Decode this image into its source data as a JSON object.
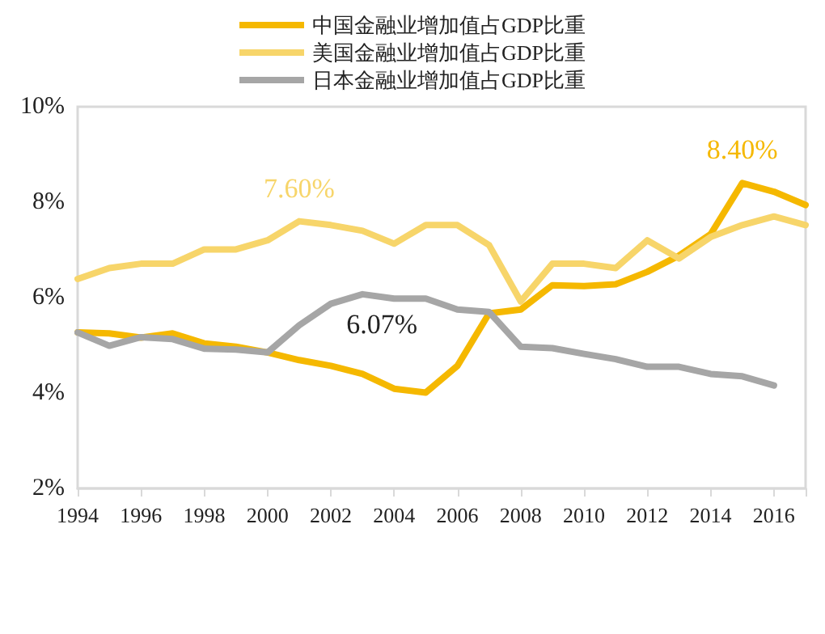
{
  "chart_data": {
    "type": "line",
    "categories": [
      "1994",
      null,
      "1996",
      null,
      "1998",
      null,
      "2000",
      null,
      "2002",
      null,
      "2004",
      null,
      "2006",
      null,
      "2008",
      null,
      "2010",
      null,
      "2012",
      null,
      "2014",
      null,
      "2016",
      null
    ],
    "series": [
      {
        "name": "中国金融业增加值占GDP比重",
        "color": "#f5b800",
        "values": [
          5.27,
          5.25,
          5.16,
          5.25,
          5.04,
          4.97,
          4.85,
          4.69,
          4.57,
          4.4,
          4.09,
          4.01,
          4.57,
          5.67,
          5.75,
          6.26,
          6.24,
          6.28,
          6.54,
          6.88,
          7.33,
          8.4,
          8.22,
          7.94
        ],
        "value_labels": [
          null,
          null,
          null,
          null,
          null,
          null,
          null,
          null,
          null,
          null,
          null,
          null,
          null,
          null,
          null,
          null,
          null,
          null,
          null,
          null,
          null,
          "8.40%",
          null,
          null
        ]
      },
      {
        "name": "美国金融业增加值占GDP比重",
        "color": "#f7d56a",
        "values": [
          6.39,
          6.62,
          6.71,
          6.71,
          7.01,
          7.01,
          7.2,
          7.6,
          7.52,
          7.4,
          7.13,
          7.52,
          7.52,
          7.1,
          5.92,
          6.71,
          6.71,
          6.62,
          7.2,
          6.82,
          7.27,
          7.52,
          7.7,
          7.52
        ],
        "value_labels": [
          null,
          null,
          null,
          null,
          null,
          null,
          null,
          "7.60%",
          null,
          null,
          null,
          null,
          null,
          null,
          null,
          null,
          null,
          null,
          null,
          null,
          null,
          null,
          null,
          null
        ]
      },
      {
        "name": "日本金融业增加值占GDP比重",
        "color": "#a6a6a6",
        "values": [
          5.27,
          4.99,
          5.17,
          5.13,
          4.93,
          4.91,
          4.85,
          5.42,
          5.87,
          6.07,
          5.98,
          5.98,
          5.75,
          5.7,
          4.97,
          4.94,
          4.82,
          4.71,
          4.55,
          4.55,
          4.4,
          4.35,
          4.16,
          null
        ],
        "value_labels": [
          null,
          null,
          null,
          null,
          null,
          null,
          null,
          null,
          null,
          "6.07%",
          null,
          null,
          null,
          null,
          null,
          null,
          null,
          null,
          null,
          null,
          null,
          null,
          null,
          null
        ]
      }
    ],
    "ylim": [
      2,
      10
    ],
    "yticks": [
      {
        "value": 2,
        "label": "2%"
      },
      {
        "value": 4,
        "label": "4%"
      },
      {
        "value": 6,
        "label": "6%"
      },
      {
        "value": 8,
        "label": "8%"
      },
      {
        "value": 10,
        "label": "10%"
      }
    ],
    "grid": false,
    "legend": "top",
    "marker": "none",
    "line_style": "solid"
  }
}
